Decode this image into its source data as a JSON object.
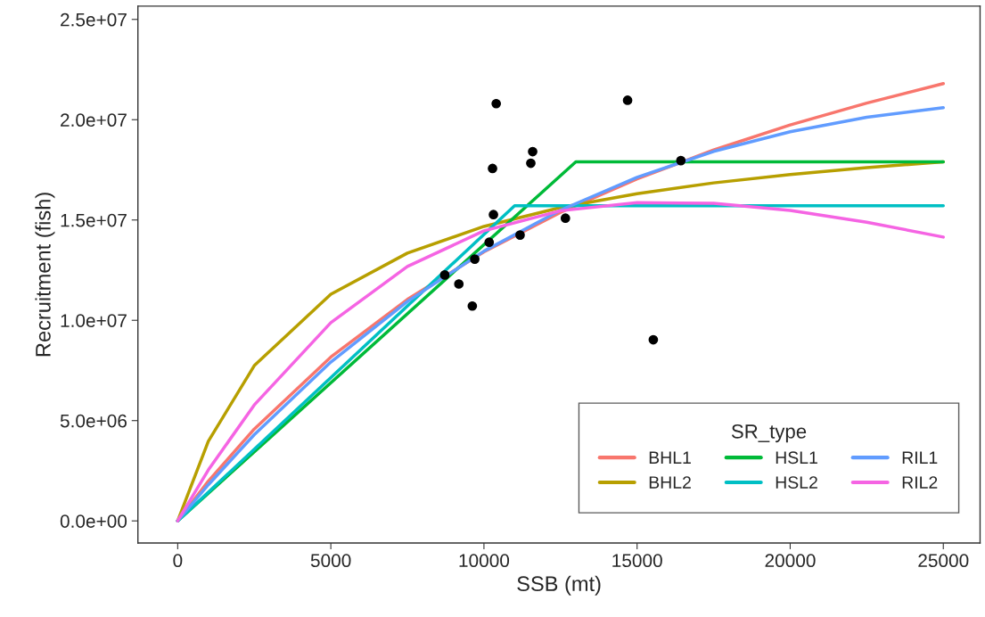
{
  "chart_data": {
    "type": "line",
    "xlabel": "SSB (mt)",
    "ylabel": "Recruitment (fish)",
    "legend_title": "SR_type",
    "legend": "bottom right",
    "grid": false,
    "marker": "none",
    "line_style": "solid",
    "xlim": [
      -1300,
      26200
    ],
    "ylim": [
      -1100000,
      25660000
    ],
    "xticks": [
      0,
      5000,
      10000,
      15000,
      20000,
      25000
    ],
    "yticks": [
      {
        "value": 0,
        "label": "0.0e+00"
      },
      {
        "value": 5000000,
        "label": "5.0e+06"
      },
      {
        "value": 10000000,
        "label": "1.0e+07"
      },
      {
        "value": 15000000,
        "label": "1.5e+07"
      },
      {
        "value": 20000000,
        "label": "2.0e+07"
      },
      {
        "value": 25000000,
        "label": "2.5e+07"
      }
    ],
    "x": [
      0,
      1000,
      2500,
      5000,
      7500,
      10000,
      12500,
      15000,
      17500,
      20000,
      22500,
      25000
    ],
    "series": [
      {
        "name": "BHL1",
        "color": "#f8766d",
        "values": [
          0,
          1980000,
          4580000,
          8170000,
          11040000,
          13410000,
          15380000,
          17050000,
          18490000,
          19740000,
          20830000,
          21800000
        ]
      },
      {
        "name": "BHL2",
        "color": "#b79f00",
        "values": [
          0,
          3970000,
          7740000,
          11300000,
          13350000,
          14680000,
          15620000,
          16310000,
          16850000,
          17270000,
          17610000,
          17900000
        ]
      },
      {
        "name": "HSL1",
        "color": "#00ba38",
        "x": [
          0,
          13000,
          25000
        ],
        "values": [
          0,
          17900000,
          17900000
        ]
      },
      {
        "name": "HSL2",
        "color": "#00bfc4",
        "x": [
          0,
          11000,
          25000
        ],
        "values": [
          0,
          15710000,
          15710000
        ]
      },
      {
        "name": "RIL1",
        "color": "#619cff",
        "values": [
          0,
          1800000,
          4300000,
          7920000,
          10940000,
          13450000,
          15490000,
          17130000,
          18420000,
          19400000,
          20120000,
          20600000
        ]
      },
      {
        "name": "RIL2",
        "color": "#f564e3",
        "values": [
          0,
          2540000,
          5780000,
          9880000,
          12680000,
          14460000,
          15460000,
          15870000,
          15830000,
          15480000,
          14890000,
          14150000
        ]
      },
      {
        "type": "scatter",
        "color": "#000000",
        "marker": "circle",
        "x": [
          8720,
          9180,
          9620,
          9700,
          10170,
          10280,
          10310,
          10400,
          11180,
          11530,
          11590,
          12660,
          14690,
          15530,
          16430
        ],
        "values": [
          12260000,
          11810000,
          10710000,
          13050000,
          13890000,
          17570000,
          15270000,
          20800000,
          14250000,
          17830000,
          18410000,
          15090000,
          20970000,
          9030000,
          17960000
        ]
      }
    ]
  }
}
